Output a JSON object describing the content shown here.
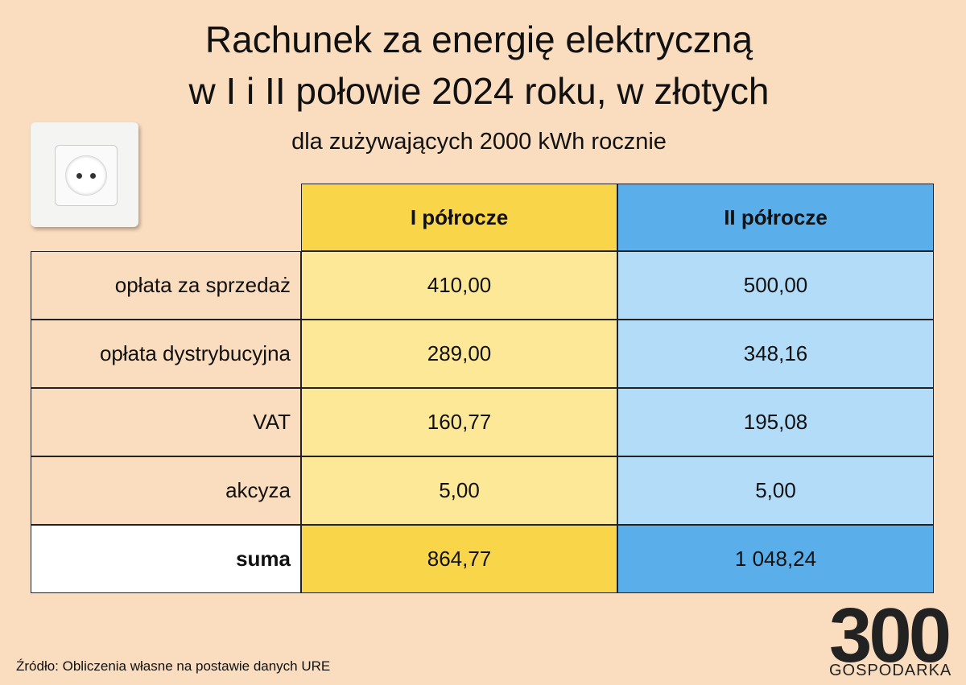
{
  "header": {
    "title_lines": [
      "Rachunek za energię elektryczną",
      "w I i II połowie 2024 roku, w złotych"
    ],
    "subtitle": "dla zużywających 2000 kWh rocznie"
  },
  "table": {
    "columns": [
      "I półrocze",
      "II półrocze"
    ],
    "rows": [
      [
        "opłata za sprzedaż",
        "410,00",
        "500,00"
      ],
      [
        "opłata dystrybucyjna",
        "289,00",
        "348,16"
      ],
      [
        "VAT",
        "160,77",
        "195,08"
      ],
      [
        "akcyza",
        "5,00",
        "5,00"
      ],
      [
        "suma",
        "864,77",
        "1 048,24"
      ]
    ]
  },
  "footer": {
    "source": "Źródło: Obliczenia własne na postawie danych URE",
    "logo_number": "300",
    "logo_text": "GOSPODARKA"
  }
}
